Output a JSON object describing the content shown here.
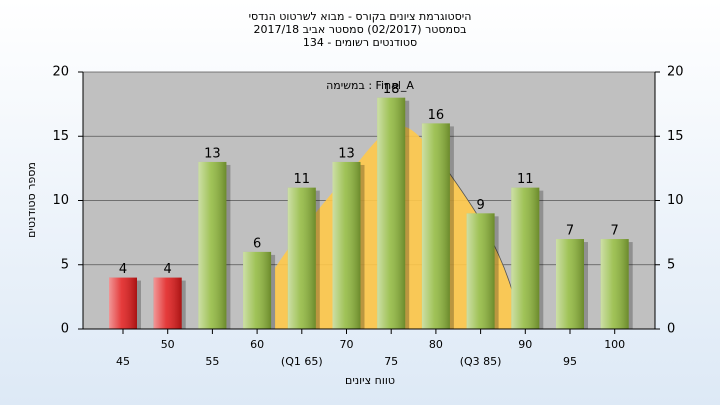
{
  "chart_data": {
    "type": "bar",
    "title": [
      "היסטוגרמת ציונים בקורס - מבוא לשרטוט הנדסי",
      "בסמסטר  (02/2017)  סמסטר אביב 2017/18",
      "סטודנטים רשומים - 134"
    ],
    "annotation": "במשימה : Final_A",
    "x_label": "טווח ציונים",
    "y_label": "מספר סטודנטים",
    "categories": [
      "45",
      "50",
      "55",
      "60",
      "(Q1 65)",
      "70",
      "75",
      "80",
      "(Q3 85)",
      "90",
      "95",
      "100"
    ],
    "values": [
      4,
      4,
      13,
      6,
      11,
      13,
      18,
      16,
      9,
      11,
      7,
      7
    ],
    "colors": [
      "#e01818",
      "#e01818",
      "#8fb83a",
      "#8fb83a",
      "#8fb83a",
      "#8fb83a",
      "#8fb83a",
      "#8fb83a",
      "#8fb83a",
      "#8fb83a",
      "#8fb83a",
      "#8fb83a"
    ],
    "ylim": [
      0,
      20
    ],
    "yticks": [
      0,
      5,
      10,
      15,
      20
    ],
    "y2lim": [
      0,
      20
    ],
    "y2ticks": [
      0,
      5,
      10,
      15,
      20
    ],
    "grid": true
  }
}
